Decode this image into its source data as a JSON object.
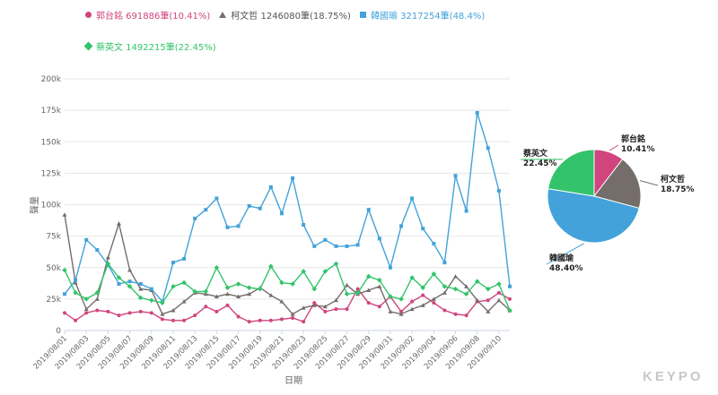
{
  "watermark": "KEYPO",
  "chart_data": {
    "type": "line",
    "xlabel": "日期",
    "ylabel": "聲量",
    "ylim": [
      0,
      200000
    ],
    "yticks": [
      0,
      25000,
      50000,
      75000,
      100000,
      125000,
      150000,
      175000,
      200000
    ],
    "ytick_labels": [
      "0",
      "25k",
      "50k",
      "75k",
      "100k",
      "125k",
      "150k",
      "175k",
      "200k"
    ],
    "grid": true,
    "legend_position": "top",
    "x_labels": [
      "2019/08/01",
      "2019/08/03",
      "2019/08/05",
      "2019/08/07",
      "2019/08/09",
      "2019/08/11",
      "2019/08/13",
      "2019/08/15",
      "2019/08/17",
      "2019/08/19",
      "2019/08/21",
      "2019/08/23",
      "2019/08/25",
      "2019/08/27",
      "2019/08/29",
      "2019/08/31",
      "2019/09/02",
      "2019/09/04",
      "2019/09/06",
      "2019/09/08",
      "2019/09/10"
    ],
    "num_points": 42,
    "series": [
      {
        "name": "郭台銘",
        "legend": "郭台銘 691886筆(10.41%)",
        "color": "#d0457e",
        "marker": "circle",
        "values": [
          14000,
          8000,
          14000,
          16000,
          15000,
          12000,
          14000,
          15000,
          14000,
          9000,
          8000,
          8000,
          12000,
          19000,
          15000,
          20000,
          11000,
          7000,
          8000,
          8000,
          9000,
          10000,
          7000,
          22000,
          15000,
          17000,
          17000,
          33000,
          22000,
          19000,
          27000,
          15000,
          23000,
          28000,
          22000,
          16000,
          13000,
          12000,
          23000,
          24000,
          30000,
          25000
        ]
      },
      {
        "name": "柯文哲",
        "legend": "柯文哲 1246080筆(18.75%)",
        "color": "#756d6a",
        "marker": "triangle",
        "values": [
          92000,
          38000,
          17000,
          25000,
          58000,
          85000,
          48000,
          33000,
          32000,
          13000,
          16000,
          23000,
          30000,
          29000,
          27000,
          29000,
          27000,
          29000,
          34000,
          28000,
          23000,
          13000,
          18000,
          20000,
          19000,
          24000,
          36000,
          29000,
          32000,
          35000,
          15000,
          13000,
          17000,
          20000,
          25000,
          30000,
          43000,
          35000,
          24000,
          15000,
          24000,
          16000
        ]
      },
      {
        "name": "韓國瑜",
        "legend": "韓國瑜 3217254筆(48.4%)",
        "color": "#43a2d9",
        "marker": "square",
        "values": [
          29000,
          40000,
          72000,
          64000,
          52000,
          37000,
          39000,
          37000,
          33000,
          23000,
          54000,
          57000,
          89000,
          96000,
          105000,
          82000,
          83000,
          99000,
          97000,
          114000,
          93000,
          121000,
          84000,
          67000,
          72000,
          67000,
          67000,
          68000,
          96000,
          73000,
          50000,
          83000,
          105000,
          81000,
          69000,
          54000,
          123000,
          95000,
          173000,
          145000,
          111000,
          35000
        ]
      },
      {
        "name": "蔡英文",
        "legend": "蔡英文 1492215筆(22.45%)",
        "color": "#33c46b",
        "marker": "diamond",
        "values": [
          48000,
          30000,
          25000,
          30000,
          53000,
          42000,
          35000,
          26000,
          24000,
          22000,
          35000,
          38000,
          31000,
          31000,
          50000,
          34000,
          37000,
          34000,
          33000,
          51000,
          38000,
          37000,
          47000,
          33000,
          47000,
          53000,
          29000,
          30000,
          43000,
          40000,
          27000,
          25000,
          42000,
          34000,
          45000,
          35000,
          33000,
          29000,
          39000,
          33000,
          37000,
          16000
        ]
      }
    ]
  },
  "pie_data": {
    "type": "pie",
    "slices": [
      {
        "name": "郭台銘",
        "value": 10.41,
        "label": "10.41%",
        "color": "#d0457e"
      },
      {
        "name": "柯文哲",
        "value": 18.75,
        "label": "18.75%",
        "color": "#756d6a"
      },
      {
        "name": "韓國瑜",
        "value": 48.4,
        "label": "48.40%",
        "color": "#43a2d9"
      },
      {
        "name": "蔡英文",
        "value": 22.45,
        "label": "22.45%",
        "color": "#33c46b"
      }
    ]
  }
}
